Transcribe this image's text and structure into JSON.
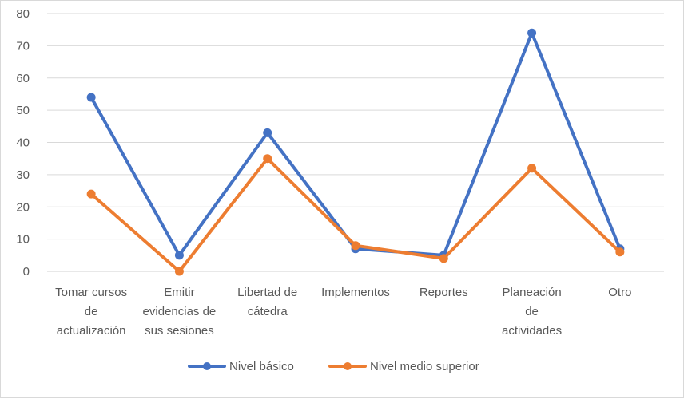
{
  "chart_data": {
    "type": "line",
    "title": "",
    "xlabel": "",
    "ylabel": "",
    "ylim": [
      0,
      80
    ],
    "yticks": [
      "0",
      "10",
      "20",
      "30",
      "40",
      "50",
      "60",
      "70",
      "80"
    ],
    "grid": true,
    "legend_position": "bottom",
    "categories": [
      [
        "Tomar cursos",
        "de",
        "actualización"
      ],
      [
        "Emitir",
        "evidencias de",
        "sus sesiones"
      ],
      [
        "Libertad de",
        "cátedra"
      ],
      [
        "Implementos"
      ],
      [
        "Reportes"
      ],
      [
        "Planeación",
        "de",
        "actividades"
      ],
      [
        "Otro"
      ]
    ],
    "series": [
      {
        "name": "Nivel básico",
        "color": "#4472c4",
        "values": [
          54,
          5,
          43,
          7,
          5,
          74,
          7
        ]
      },
      {
        "name": "Nivel medio superior",
        "color": "#ed7d31",
        "values": [
          24,
          0,
          35,
          8,
          4,
          32,
          6
        ]
      }
    ]
  }
}
